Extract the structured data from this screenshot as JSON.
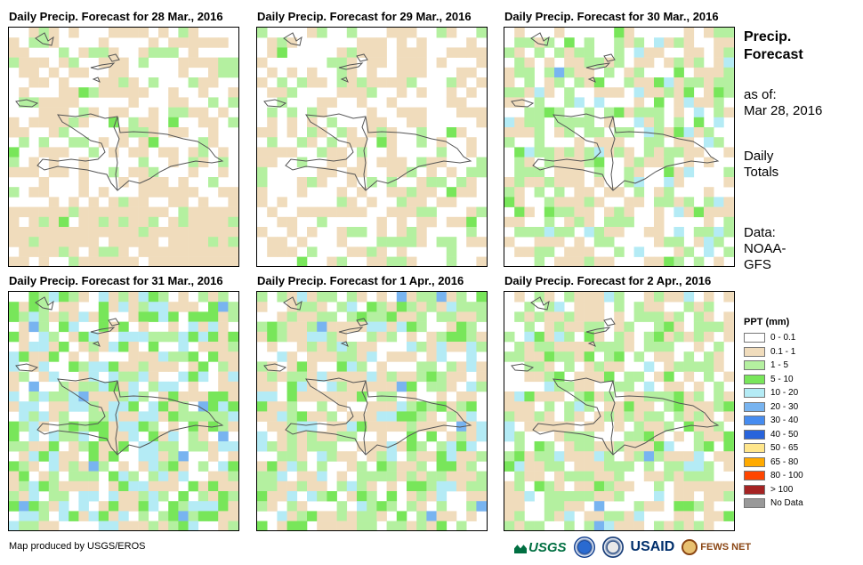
{
  "panels": [
    {
      "title": "Daily Precip. Forecast for 28 Mar., 2016"
    },
    {
      "title": "Daily Precip. Forecast for 29 Mar., 2016"
    },
    {
      "title": "Daily Precip. Forecast for 30 Mar., 2016"
    },
    {
      "title": "Daily Precip. Forecast for 31 Mar., 2016"
    },
    {
      "title": "Daily Precip. Forecast for 1 Apr., 2016"
    },
    {
      "title": "Daily Precip. Forecast for 2 Apr., 2016"
    }
  ],
  "side": {
    "title_line1": "Precip.",
    "title_line2": "Forecast",
    "asof_label": "as of:",
    "asof_date": "Mar 28, 2016",
    "totals_line1": "Daily",
    "totals_line2": "Totals",
    "data_line1": "Data:",
    "data_line2": "NOAA-",
    "data_line3": "GFS"
  },
  "legend": {
    "title": "PPT (mm)",
    "items": [
      {
        "label": "0 - 0.1",
        "color": "#ffffff"
      },
      {
        "label": "0.1 - 1",
        "color": "#f0dcbc"
      },
      {
        "label": "1 - 5",
        "color": "#b4f0a0"
      },
      {
        "label": "5 - 10",
        "color": "#78e65a"
      },
      {
        "label": "10 - 20",
        "color": "#b4ebf5"
      },
      {
        "label": "20 - 30",
        "color": "#78b4f0"
      },
      {
        "label": "30 - 40",
        "color": "#468cf0"
      },
      {
        "label": "40 - 50",
        "color": "#2864dc"
      },
      {
        "label": "50 - 65",
        "color": "#ffe68c"
      },
      {
        "label": "65 - 80",
        "color": "#ffaa00"
      },
      {
        "label": "80 - 100",
        "color": "#ff4600"
      },
      {
        "label": "> 100",
        "color": "#a52323"
      },
      {
        "label": "No Data",
        "color": "#999999"
      }
    ]
  },
  "footer": {
    "credit": "Map produced by USGS/EROS",
    "logo_usgs": "USGS",
    "logo_usaid": "USAID",
    "logo_fews": "FEWS NET"
  },
  "map_coverage": [
    {
      "tan": 0.4,
      "green": 0.12,
      "lightgreen_bias": 0.9,
      "blue": 0.0,
      "seed": 11,
      "south_tan": true
    },
    {
      "tan": 0.35,
      "green": 0.15,
      "lightgreen_bias": 0.95,
      "blue": 0.0,
      "seed": 23,
      "south_tan": false
    },
    {
      "tan": 0.3,
      "green": 0.35,
      "lightgreen_bias": 0.85,
      "blue": 0.02,
      "seed": 37,
      "south_tan": false
    },
    {
      "tan": 0.25,
      "green": 0.55,
      "lightgreen_bias": 0.55,
      "blue": 0.05,
      "seed": 41,
      "south_tan": false
    },
    {
      "tan": 0.35,
      "green": 0.45,
      "lightgreen_bias": 0.75,
      "blue": 0.03,
      "seed": 53,
      "south_tan": false
    },
    {
      "tan": 0.35,
      "green": 0.4,
      "lightgreen_bias": 0.8,
      "blue": 0.01,
      "seed": 67,
      "south_tan": false
    }
  ]
}
